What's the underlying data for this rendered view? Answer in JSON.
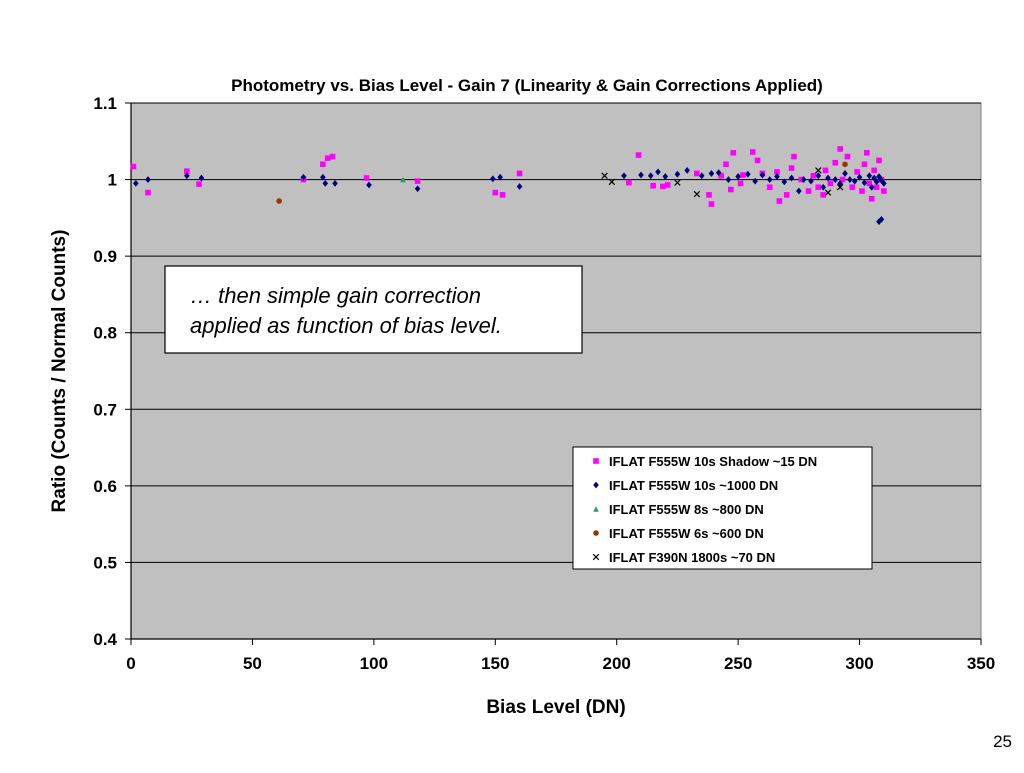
{
  "slide": {
    "page_number": "25"
  },
  "callout": {
    "line1": "… then simple gain correction",
    "line2": "applied as function of bias level."
  },
  "chart_data": {
    "type": "scatter",
    "title": "Photometry vs. Bias Level - Gain 7 (Linearity & Gain Corrections Applied)",
    "xlabel": "Bias Level (DN)",
    "ylabel": "Ratio (Counts / Normal Counts)",
    "xlim": [
      0,
      350
    ],
    "ylim": [
      0.4,
      1.1
    ],
    "xticks": [
      0,
      50,
      100,
      150,
      200,
      250,
      300,
      350
    ],
    "xtick_labels": [
      "0",
      "50",
      "100",
      "150",
      "200",
      "250",
      "300",
      "350"
    ],
    "yticks": [
      0.4,
      0.5,
      0.6,
      0.7,
      0.8,
      0.9,
      1.0,
      1.1
    ],
    "ytick_labels": [
      "0.4",
      "0.5",
      "0.6",
      "0.7",
      "0.8",
      "0.9",
      "1",
      "1.1"
    ],
    "grid": "horizontal",
    "plot_background": "#c0c0c0",
    "legend_position": "lower-right inside plot",
    "series": [
      {
        "name": "IFLAT F555W 10s Shadow ~15 DN",
        "marker": "square",
        "color": "#ff00ff",
        "points": [
          [
            1,
            1.017
          ],
          [
            7,
            0.983
          ],
          [
            23,
            1.011
          ],
          [
            28,
            0.994
          ],
          [
            71,
            1.0
          ],
          [
            79,
            1.02
          ],
          [
            81,
            1.028
          ],
          [
            83,
            1.03
          ],
          [
            97,
            1.002
          ],
          [
            118,
            0.998
          ],
          [
            150,
            0.983
          ],
          [
            153,
            0.98
          ],
          [
            160,
            1.008
          ],
          [
            205,
            0.996
          ],
          [
            209,
            1.032
          ],
          [
            215,
            0.992
          ],
          [
            219,
            0.991
          ],
          [
            221,
            0.993
          ],
          [
            233,
            1.008
          ],
          [
            238,
            0.98
          ],
          [
            239,
            0.968
          ],
          [
            243,
            1.005
          ],
          [
            245,
            1.02
          ],
          [
            247,
            0.987
          ],
          [
            248,
            1.035
          ],
          [
            251,
            0.995
          ],
          [
            252,
            1.006
          ],
          [
            256,
            1.036
          ],
          [
            258,
            1.025
          ],
          [
            260,
            1.008
          ],
          [
            263,
            0.99
          ],
          [
            266,
            1.01
          ],
          [
            267,
            0.972
          ],
          [
            270,
            0.98
          ],
          [
            272,
            1.015
          ],
          [
            273,
            1.03
          ],
          [
            276,
            1.0
          ],
          [
            279,
            0.985
          ],
          [
            281,
            1.005
          ],
          [
            283,
            0.99
          ],
          [
            285,
            0.98
          ],
          [
            286,
            1.012
          ],
          [
            288,
            0.995
          ],
          [
            290,
            1.022
          ],
          [
            292,
            1.04
          ],
          [
            293,
            1.0
          ],
          [
            295,
            1.03
          ],
          [
            297,
            0.99
          ],
          [
            299,
            1.01
          ],
          [
            301,
            0.985
          ],
          [
            302,
            1.02
          ],
          [
            303,
            1.035
          ],
          [
            304,
            0.995
          ],
          [
            305,
            0.975
          ],
          [
            306,
            1.012
          ],
          [
            307,
            0.99
          ],
          [
            308,
            1.025
          ],
          [
            309,
            1.0
          ],
          [
            310,
            0.985
          ]
        ]
      },
      {
        "name": "IFLAT F555W 10s ~1000 DN",
        "marker": "diamond",
        "color": "#000080",
        "points": [
          [
            2,
            0.995
          ],
          [
            7,
            1.0
          ],
          [
            23,
            1.005
          ],
          [
            29,
            1.002
          ],
          [
            71,
            1.003
          ],
          [
            79,
            1.003
          ],
          [
            80,
            0.995
          ],
          [
            84,
            0.995
          ],
          [
            98,
            0.993
          ],
          [
            118,
            0.988
          ],
          [
            149,
            1.001
          ],
          [
            152,
            1.003
          ],
          [
            160,
            0.991
          ],
          [
            203,
            1.005
          ],
          [
            210,
            1.006
          ],
          [
            214,
            1.005
          ],
          [
            217,
            1.01
          ],
          [
            220,
            1.004
          ],
          [
            225,
            1.007
          ],
          [
            229,
            1.012
          ],
          [
            235,
            1.005
          ],
          [
            239,
            1.008
          ],
          [
            242,
            1.009
          ],
          [
            246,
            1.0
          ],
          [
            250,
            1.004
          ],
          [
            254,
            1.007
          ],
          [
            257,
            0.998
          ],
          [
            260,
            1.006
          ],
          [
            263,
            1.0
          ],
          [
            266,
            1.004
          ],
          [
            269,
            0.997
          ],
          [
            272,
            1.002
          ],
          [
            275,
            0.985
          ],
          [
            277,
            1.0
          ],
          [
            280,
            0.998
          ],
          [
            283,
            1.005
          ],
          [
            285,
            0.99
          ],
          [
            287,
            1.002
          ],
          [
            290,
            1.0
          ],
          [
            292,
            0.995
          ],
          [
            294,
            1.008
          ],
          [
            296,
            1.0
          ],
          [
            298,
            0.998
          ],
          [
            300,
            1.003
          ],
          [
            302,
            0.996
          ],
          [
            304,
            1.005
          ],
          [
            305,
            0.99
          ],
          [
            306,
            1.002
          ],
          [
            307,
            0.997
          ],
          [
            308,
            1.004
          ],
          [
            309,
            0.999
          ],
          [
            310,
            0.995
          ],
          [
            309,
            0.948
          ],
          [
            308,
            0.945
          ]
        ]
      },
      {
        "name": "IFLAT F555W 8s ~800 DN",
        "marker": "triangle",
        "color": "#339966",
        "points": [
          [
            112,
            1.0
          ]
        ]
      },
      {
        "name": "IFLAT F555W 6s ~600 DN",
        "marker": "circle",
        "color": "#993300",
        "points": [
          [
            61,
            0.972
          ],
          [
            294,
            1.02
          ]
        ]
      },
      {
        "name": "IFLAT F390N 1800s ~70 DN",
        "marker": "cross",
        "color": "#000000",
        "points": [
          [
            195,
            1.005
          ],
          [
            198,
            0.997
          ],
          [
            225,
            0.996
          ],
          [
            233,
            0.981
          ],
          [
            283,
            1.012
          ],
          [
            287,
            0.983
          ],
          [
            292,
            0.99
          ]
        ]
      }
    ]
  }
}
